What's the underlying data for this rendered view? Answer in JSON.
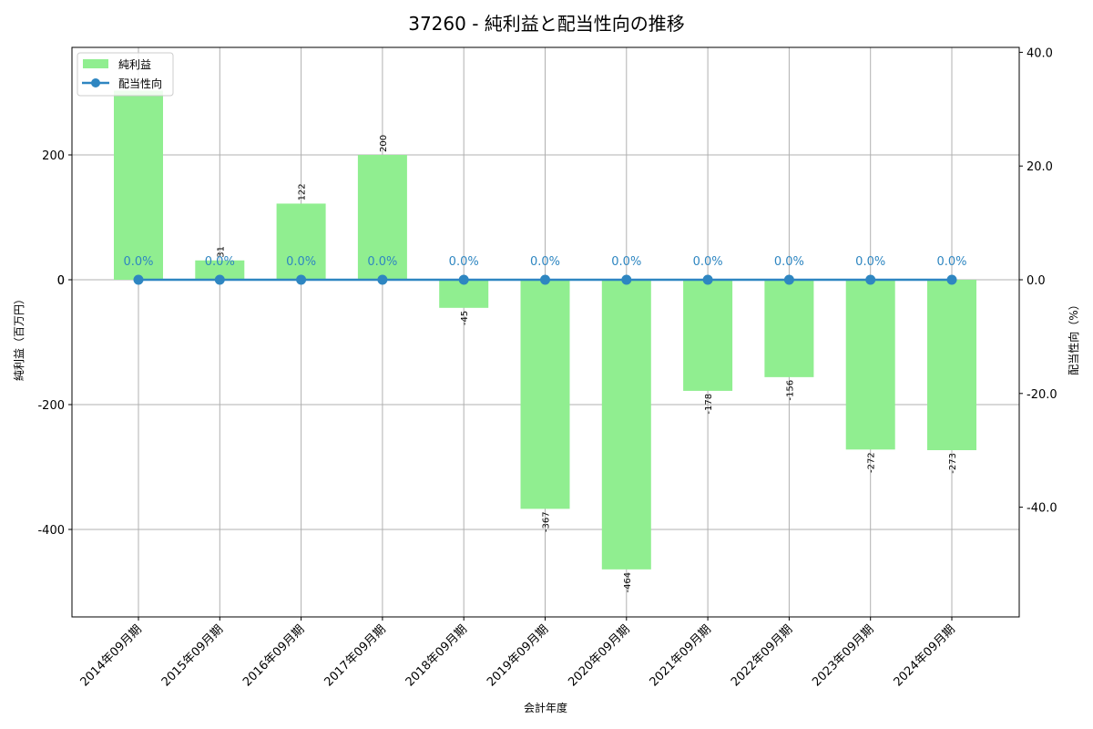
{
  "chart_data": {
    "type": "bar",
    "title": "37260 - 純利益と配当性向の推移",
    "xlabel": "会計年度",
    "ylabel": "純利益（百万円）",
    "y2label": "配当性向（%）",
    "categories": [
      "2014年09月期",
      "2015年09月期",
      "2016年09月期",
      "2017年09月期",
      "2018年09月期",
      "2019年09月期",
      "2020年09月期",
      "2021年09月期",
      "2022年09月期",
      "2023年09月期",
      "2024年09月期"
    ],
    "series": [
      {
        "name": "純利益",
        "type": "bar",
        "axis": "left",
        "color": "#90ee90",
        "values": [
          303,
          31,
          122,
          200,
          -45,
          -367,
          -464,
          -178,
          -156,
          -272,
          -273
        ],
        "labels": [
          "",
          "31",
          "122",
          "200",
          "-45",
          "-367",
          "-464",
          "-178",
          "-156",
          "-272",
          "-273"
        ]
      },
      {
        "name": "配当性向",
        "type": "line",
        "axis": "right",
        "color": "#2e86c1",
        "values": [
          0.0,
          0.0,
          0.0,
          0.0,
          0.0,
          0.0,
          0.0,
          0.0,
          0.0,
          0.0,
          0.0
        ],
        "labels": [
          "0.0%",
          "0.0%",
          "0.0%",
          "0.0%",
          "0.0%",
          "0.0%",
          "0.0%",
          "0.0%",
          "0.0%",
          "0.0%",
          "0.0%"
        ]
      }
    ],
    "ylim": [
      -540,
      372
    ],
    "yticks": [
      -400,
      -200,
      0,
      200
    ],
    "y2lim": [
      -59.1,
      40.9
    ],
    "y2ticks": [
      "-40.0",
      "-20.0",
      "0.0",
      "20.0",
      "40.0"
    ],
    "grid": true,
    "legend_position": "upper left"
  }
}
